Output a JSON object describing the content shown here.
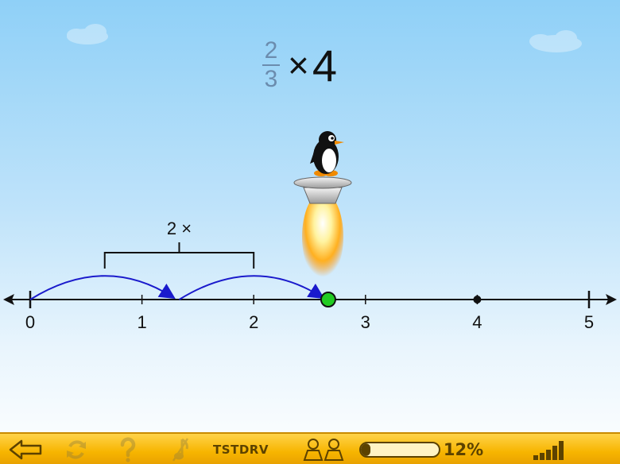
{
  "problem": {
    "numerator": "2",
    "denominator": "3",
    "operator": "×",
    "multiplier": "4"
  },
  "number_line": {
    "min": 0,
    "max": 5,
    "tick_labels": [
      "0",
      "1",
      "2",
      "3",
      "4",
      "5"
    ],
    "marked_point": 4,
    "answer_point": 2.6667,
    "answer_color": "#22cc22"
  },
  "hops": [
    {
      "from": 0,
      "to": 1.3333
    },
    {
      "from": 1.3333,
      "to": 2.6667
    }
  ],
  "group_bracket": {
    "label": "2 ×",
    "from": 0.6667,
    "to": 2.0
  },
  "colors": {
    "hop": "#1a1acc",
    "axis": "#111111",
    "toolbar": "#f7b500"
  },
  "toolbar": {
    "back_icon": "arrow-left-icon",
    "refresh_icon": "refresh-icon",
    "help_icon": "question-icon",
    "mute_icon": "music-off-icon",
    "student_code": "TSTDRV",
    "users_icon": "users-icon",
    "progress_percent": 12,
    "progress_label": "12%",
    "signal_icon": "signal-bars-icon"
  }
}
